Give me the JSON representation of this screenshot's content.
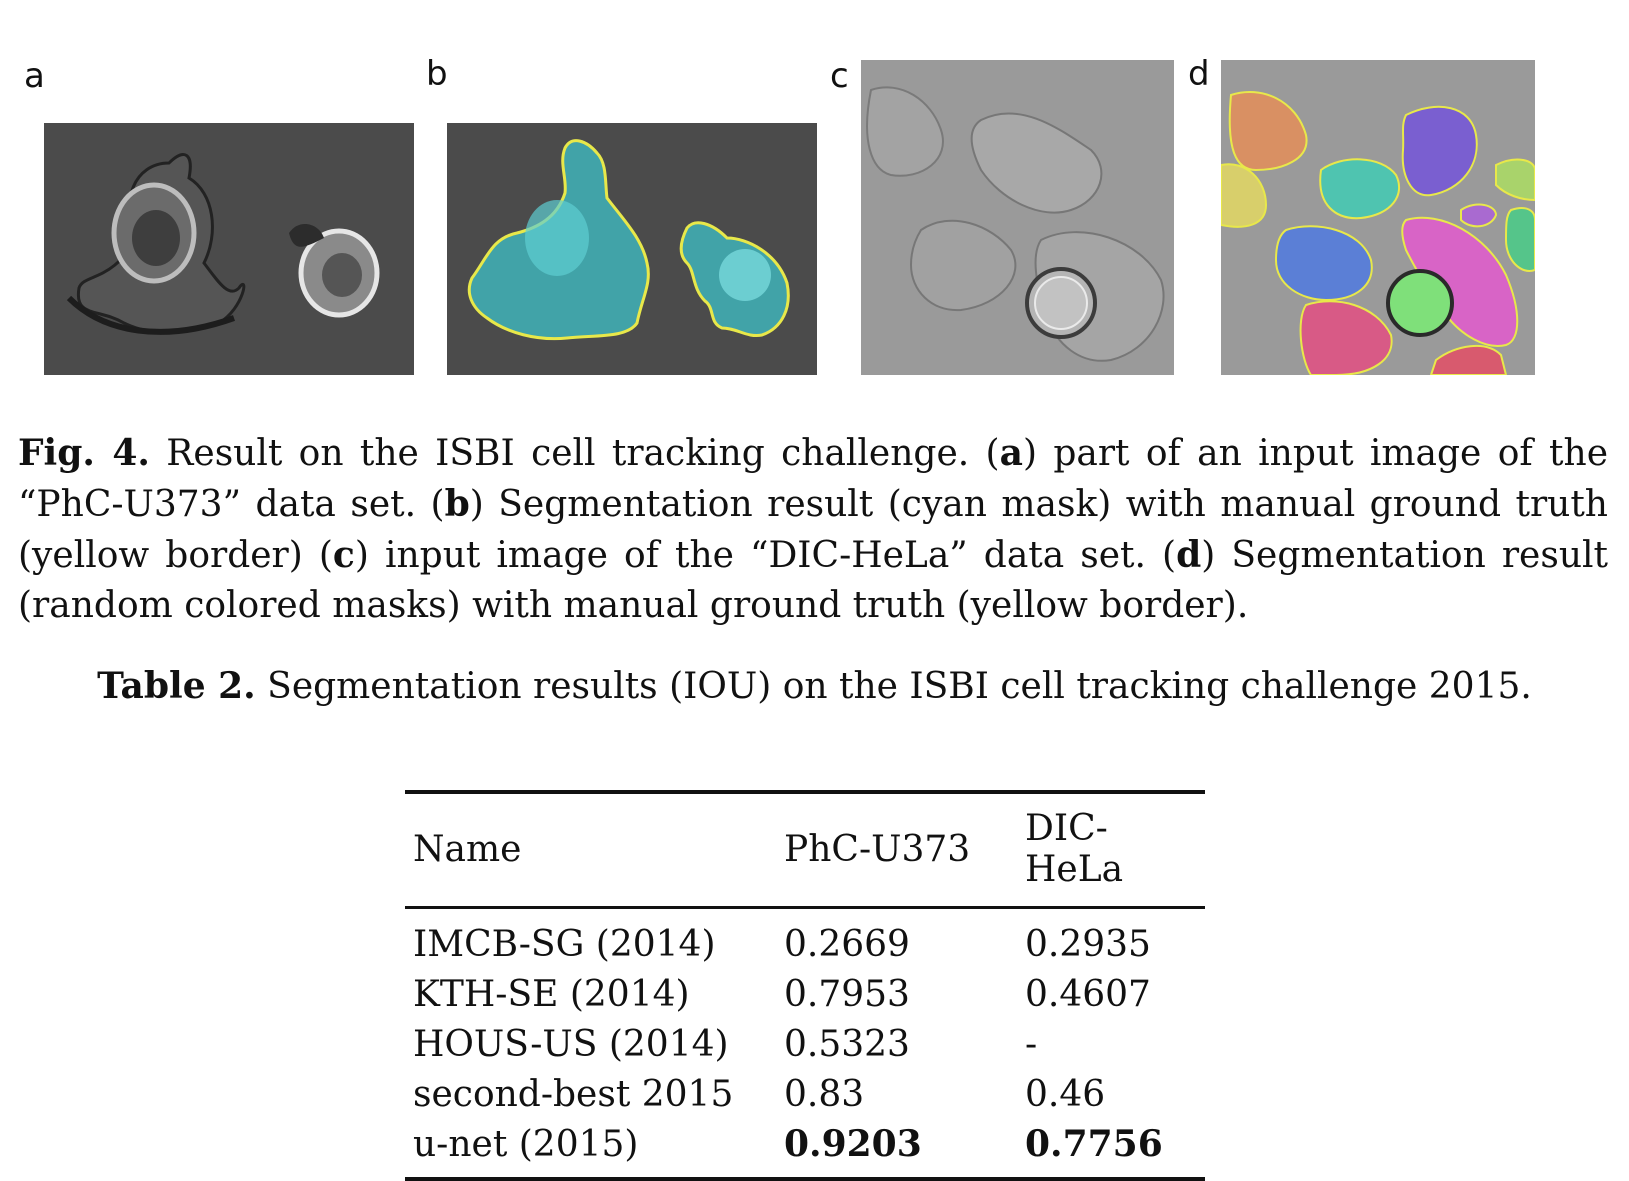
{
  "panels": {
    "a": "a",
    "b": "b",
    "c": "c",
    "d": "d"
  },
  "figure_caption": {
    "label": "Fig. 4.",
    "text_1": " Result on the ISBI cell tracking challenge. (",
    "a": "a",
    "text_2": ") part of an input image of the “PhC-U373” data set. (",
    "b": "b",
    "text_3": ") Segmentation result (cyan mask) with manual ground truth (yellow border) (",
    "c": "c",
    "text_4": ") input image of the “DIC-HeLa” data set. (",
    "d": "d",
    "text_5": ") Segmentation result (random colored masks) with manual ground truth (yellow border)."
  },
  "table_caption": {
    "label": "Table 2.",
    "text": " Segmentation results (IOU) on the ISBI cell tracking challenge 2015."
  },
  "table": {
    "headers": [
      "Name",
      "PhC-U373",
      "DIC-HeLa"
    ],
    "rows": [
      [
        "IMCB-SG (2014)",
        "0.2669",
        "0.2935"
      ],
      [
        "KTH-SE (2014)",
        "0.7953",
        "0.4607"
      ],
      [
        "HOUS-US (2014)",
        "0.5323",
        "-"
      ],
      [
        "second-best 2015",
        "0.83",
        "0.46"
      ],
      [
        "u-net (2015)",
        "0.9203",
        "0.7756"
      ]
    ]
  },
  "colors": {
    "cyan_mask": "#3fb3b8",
    "yellow_border": "#e8e84a",
    "phase_bg": "#4a4a4a",
    "dic_bg": "#9a9a9a"
  }
}
